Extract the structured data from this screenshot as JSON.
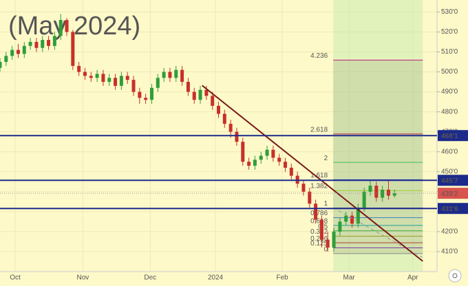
{
  "chart_data": {
    "type": "candlestick",
    "watermark": "(May 2024)",
    "x": [
      0,
      2,
      4,
      6,
      8,
      10,
      12,
      14,
      16,
      18,
      20,
      22,
      24,
      26,
      28,
      30,
      32,
      34,
      36,
      38,
      40,
      42,
      44,
      46,
      48,
      50,
      52,
      54,
      56,
      58,
      60,
      62,
      64,
      66,
      68,
      70,
      72,
      74,
      76,
      78,
      80,
      82,
      84,
      86,
      88,
      90,
      92,
      94,
      96,
      98,
      100,
      102,
      104,
      106,
      108,
      110,
      112,
      114,
      116,
      118,
      120,
      122,
      124,
      126,
      128,
      130
    ],
    "open": [
      502,
      505,
      508,
      511,
      509,
      513,
      515,
      512,
      516,
      513,
      518,
      526,
      520,
      503,
      500,
      498,
      497,
      499,
      495,
      497,
      493,
      498,
      496,
      490,
      487,
      486,
      492,
      497,
      500,
      497,
      501,
      495,
      490,
      486,
      491,
      488,
      483,
      479,
      474,
      470,
      465,
      455,
      453,
      456,
      458,
      461,
      457,
      455,
      452,
      448,
      444,
      440,
      434,
      426,
      416,
      412,
      420,
      425,
      428,
      424,
      432,
      440,
      443,
      437,
      441,
      438
    ],
    "high": [
      507,
      510,
      513,
      514,
      515,
      517,
      517,
      518,
      518,
      520,
      529,
      527,
      521,
      505,
      502,
      500,
      501,
      501,
      499,
      499,
      500,
      500,
      498,
      492,
      489,
      494,
      499,
      502,
      502,
      503,
      503,
      497,
      492,
      493,
      493,
      490,
      485,
      481,
      476,
      472,
      467,
      457,
      458,
      460,
      463,
      463,
      459,
      457,
      454,
      450,
      446,
      442,
      436,
      428,
      420,
      422,
      427,
      430,
      430,
      434,
      442,
      446,
      445,
      443,
      446,
      441
    ],
    "low": [
      500,
      503,
      506,
      507,
      507,
      511,
      510,
      510,
      511,
      511,
      516,
      518,
      501,
      498,
      496,
      495,
      495,
      493,
      493,
      491,
      491,
      494,
      488,
      484,
      484,
      484,
      490,
      495,
      495,
      495,
      493,
      488,
      484,
      484,
      486,
      481,
      477,
      472,
      467,
      463,
      453,
      451,
      451,
      454,
      456,
      455,
      453,
      450,
      446,
      442,
      438,
      432,
      424,
      412,
      410,
      410,
      418,
      423,
      422,
      422,
      430,
      438,
      435,
      435,
      436,
      437
    ],
    "close": [
      505,
      508,
      511,
      509,
      513,
      515,
      512,
      516,
      513,
      518,
      526,
      520,
      503,
      500,
      498,
      497,
      499,
      495,
      497,
      493,
      498,
      496,
      490,
      487,
      486,
      492,
      497,
      500,
      497,
      501,
      495,
      490,
      486,
      491,
      488,
      483,
      479,
      474,
      470,
      465,
      455,
      453,
      456,
      458,
      461,
      457,
      455,
      452,
      448,
      444,
      440,
      434,
      426,
      416,
      412,
      420,
      425,
      428,
      424,
      432,
      440,
      443,
      437,
      441,
      438,
      439.2
    ],
    "up_color": "#2f9e3a",
    "down_color": "#c8302a",
    "xlim": [
      0,
      144
    ],
    "xticks": [
      {
        "value": 5,
        "label": "Oct"
      },
      {
        "value": 27.3,
        "label": "Nov"
      },
      {
        "value": 49.5,
        "label": "Dec"
      },
      {
        "value": 71,
        "label": "2024"
      },
      {
        "value": 93,
        "label": "Feb"
      },
      {
        "value": 115,
        "label": "Mar"
      },
      {
        "value": 136,
        "label": "Apr"
      }
    ],
    "ylim": [
      400,
      536
    ],
    "yticks": [
      {
        "value": 410,
        "label": "410'0"
      },
      {
        "value": 420,
        "label": "420'0"
      },
      {
        "value": 430,
        "label": "430'0"
      },
      {
        "value": 440,
        "label": "440'0"
      },
      {
        "value": 450,
        "label": "450'0"
      },
      {
        "value": 460,
        "label": "460'0"
      },
      {
        "value": 470,
        "label": "470'0"
      },
      {
        "value": 480,
        "label": "480'0"
      },
      {
        "value": 490,
        "label": "490'0"
      },
      {
        "value": 500,
        "label": "500'0"
      },
      {
        "value": 510,
        "label": "510'0"
      },
      {
        "value": 520,
        "label": "520'0"
      },
      {
        "value": 530,
        "label": "530'0"
      }
    ],
    "grid": true,
    "levels": [
      {
        "value": 468.1,
        "label": "468'1"
      },
      {
        "value": 445.7,
        "label": "445'7"
      },
      {
        "value": 431.6,
        "label": "431'6"
      }
    ],
    "level_color": "#1c2a8c",
    "last_price": {
      "value": 439.2,
      "label": "439'2",
      "color": "#d9534f"
    },
    "fib": {
      "x": [
        109.8,
        139.3
      ],
      "levels": [
        {
          "ratio": "4.236",
          "value": 505.9,
          "color": "#c2187a"
        },
        {
          "ratio": "2.618",
          "value": 468.9,
          "color": "#b0203a"
        },
        {
          "ratio": "2",
          "value": 454.7,
          "color": "#3fbf4f"
        },
        {
          "ratio": "1.618",
          "value": 446.0,
          "color": "#3b5bd6"
        },
        {
          "ratio": "1.382",
          "value": 440.6,
          "color": "#9acd32"
        },
        {
          "ratio": "1",
          "value": 431.9,
          "color": "#888888"
        },
        {
          "ratio": "0.786",
          "value": 427.0,
          "color": "#3a7fc0"
        },
        {
          "ratio": "0.618",
          "value": 423.1,
          "color": "#1aa39a"
        },
        {
          "ratio": "0.5",
          "value": 420.4,
          "color": "#3aa845"
        },
        {
          "ratio": "0.382",
          "value": 417.7,
          "color": "#9a9a20"
        },
        {
          "ratio": "0.236",
          "value": 414.4,
          "color": "#b04030"
        },
        {
          "ratio": "0.125",
          "value": 411.9,
          "color": "#7a3ca0"
        },
        {
          "ratio": "0",
          "value": 409.0,
          "color": "#888888"
        }
      ]
    },
    "trendline": {
      "x": [
        66.6,
        139.3
      ],
      "y": [
        493.2,
        405.2
      ],
      "color": "#7a1a1a"
    },
    "dashed_line": {
      "x": [
        109.8,
        139.3
      ],
      "y": [
        432.0,
        407.0
      ],
      "color": "#999999"
    }
  }
}
